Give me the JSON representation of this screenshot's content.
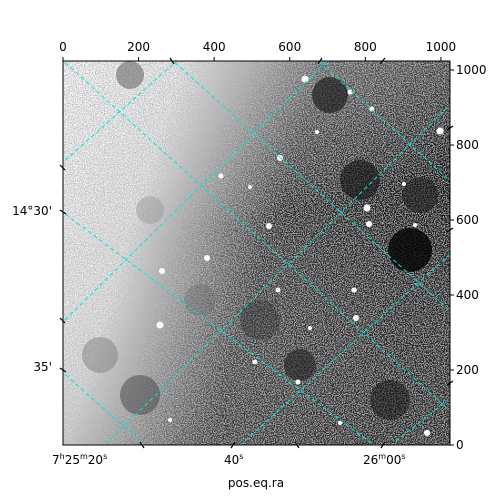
{
  "figure": {
    "background_color": "#ffffff",
    "frame_color": "#000000",
    "grid_color": "#00e5e5"
  },
  "image": {
    "description_kind": "grayscale astronomical field with bright point sources",
    "dark_side": "right",
    "light_side": "upper-left"
  },
  "top_axis": {
    "ticks": [
      {
        "value": 0,
        "label": "0"
      },
      {
        "value": 200,
        "label": "200"
      },
      {
        "value": 400,
        "label": "400"
      },
      {
        "value": 600,
        "label": "600"
      },
      {
        "value": 800,
        "label": "800"
      },
      {
        "value": 1000,
        "label": "1000"
      }
    ],
    "range": [
      0,
      1024
    ]
  },
  "right_axis": {
    "ticks": [
      {
        "value": 0,
        "label": "0"
      },
      {
        "value": 200,
        "label": "200"
      },
      {
        "value": 400,
        "label": "400"
      },
      {
        "value": 600,
        "label": "600"
      },
      {
        "value": 800,
        "label": "800"
      },
      {
        "value": 1000,
        "label": "1000"
      }
    ],
    "range": [
      0,
      1024
    ]
  },
  "bottom_axis": {
    "title": "pos.eq.ra",
    "ticks": [
      {
        "main": "7",
        "sup1": "h",
        "mid": "25",
        "sup2": "m",
        "sec": "20",
        "sup3": "s"
      },
      {
        "main": "40",
        "sup1": "s"
      },
      {
        "main": "26",
        "sup1": "m",
        "mid": "00",
        "sup2": "s"
      }
    ]
  },
  "left_axis": {
    "ticks": [
      {
        "label": "14°30'"
      },
      {
        "label": "35'"
      }
    ]
  }
}
